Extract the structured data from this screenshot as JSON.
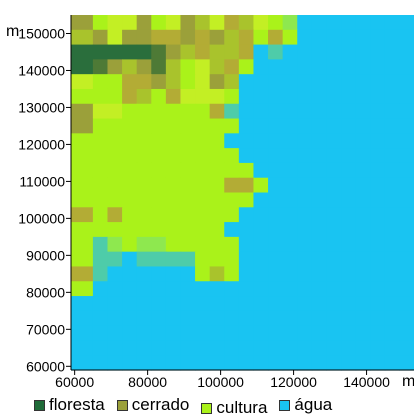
{
  "chart_data": {
    "type": "heatmap",
    "x_unit_label": "m",
    "y_unit_label": "m",
    "x_ticks": [
      60000,
      80000,
      100000,
      120000,
      140000
    ],
    "y_ticks": [
      60000,
      70000,
      80000,
      90000,
      100000,
      110000,
      120000,
      130000,
      140000,
      150000
    ],
    "xlim": [
      59000,
      153000
    ],
    "ylim": [
      59000,
      155000
    ],
    "cell_size": 4000,
    "x_origin": 61000,
    "y_origin": 155000,
    "legend": [
      {
        "key": "floresta",
        "label": "floresta",
        "color": "#1f6b38"
      },
      {
        "key": "cerrado",
        "label": "cerrado",
        "color": "#9ba03a"
      },
      {
        "key": "cultura",
        "label": "cultura",
        "color": "#aaf21a"
      },
      {
        "key": "agua",
        "label": "água",
        "color": "#19c4f2"
      }
    ],
    "palette": {
      "F": "#2a6e3c",
      "f": "#4e7a36",
      "C": "#9ba03a",
      "c": "#b3ac35",
      "d": "#a9c32c",
      "G": "#aaf21a",
      "g": "#c3ef24",
      "h": "#d4f227",
      "L": "#8ee84f",
      "t": "#4ecca9",
      "W": "#19c4f2",
      "w": "#3ac8f0"
    },
    "rows": [
      "CGggCGgCdgcdgGLWWWWWWWW",
      "dCgCCccCcCdcGcGWWWWWWWW",
      "FFFFFfCdcddcWtWWWWWWWWW",
      "FfCdCfdGgdcGWWWWWWWWWWW",
      "gGGccCdGgCdWWWWWWWWWWWW",
      "GGGcdGcgggGWWWWWWWWWWWW",
      "CggGGGGGGctWWWWWWWWWWWW",
      "CGGGGGGGGGGWWWWWWWWWWWW",
      "GGGGGGGGGGWWWWWWWWWWWWW",
      "GGGGGGGGGGGWWWWWWWWWWWW",
      "GGGGGGGGGGGGWWWWWWWWWWW",
      "GGGGGGGGGGccGWWWWWWWWWW",
      "GGGGGGGGGGGGWWWWWWWWWWW",
      "cGcGGGGGGGGWWWWWWWWWWWW",
      "GGGGGGGGGGWWWWWWWWWWWWW",
      "GtLGLLGGGGGWWWWWWWWWWWW",
      "GttWttttGGGWWWWWWWWWWWW",
      "ctWWWWWWGdGWWWWWWWWWWWW",
      "GWWWWWWWWWWWWWWWWWWWWWW",
      "WWWWWWWWWWWWWWWWWWWWWWW",
      "WWWWWWWWWWWWWWWWWWWWWWW",
      "WWWWWWWWWWWWWWWWWWWWWWW",
      "WWWWWWWWWWWWWWWWWWWWWWW",
      "WWWWWWWWWWWWWWWWWWWWWWW",
      "WWWWWWWWWWWWWWWWWWWWWWW"
    ]
  }
}
